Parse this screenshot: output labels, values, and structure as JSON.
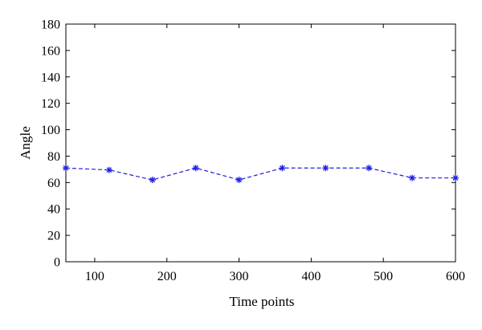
{
  "chart_data": {
    "type": "line",
    "title": "",
    "xlabel": "Time points",
    "ylabel": "Angle",
    "xlim": [
      60,
      600
    ],
    "ylim": [
      0,
      180
    ],
    "x_ticks": [
      100,
      200,
      300,
      400,
      500,
      600
    ],
    "y_ticks": [
      0,
      20,
      40,
      60,
      80,
      100,
      120,
      140,
      160,
      180
    ],
    "grid": false,
    "series": [
      {
        "x": [
          60,
          120,
          180,
          240,
          300,
          360,
          420,
          480,
          540,
          600
        ],
        "y": [
          71,
          69.5,
          62,
          71,
          62,
          71,
          71,
          71,
          63.5,
          63.5
        ],
        "color": "#1f1fe6",
        "line_style": "dashed",
        "marker": "asterisk"
      }
    ]
  }
}
